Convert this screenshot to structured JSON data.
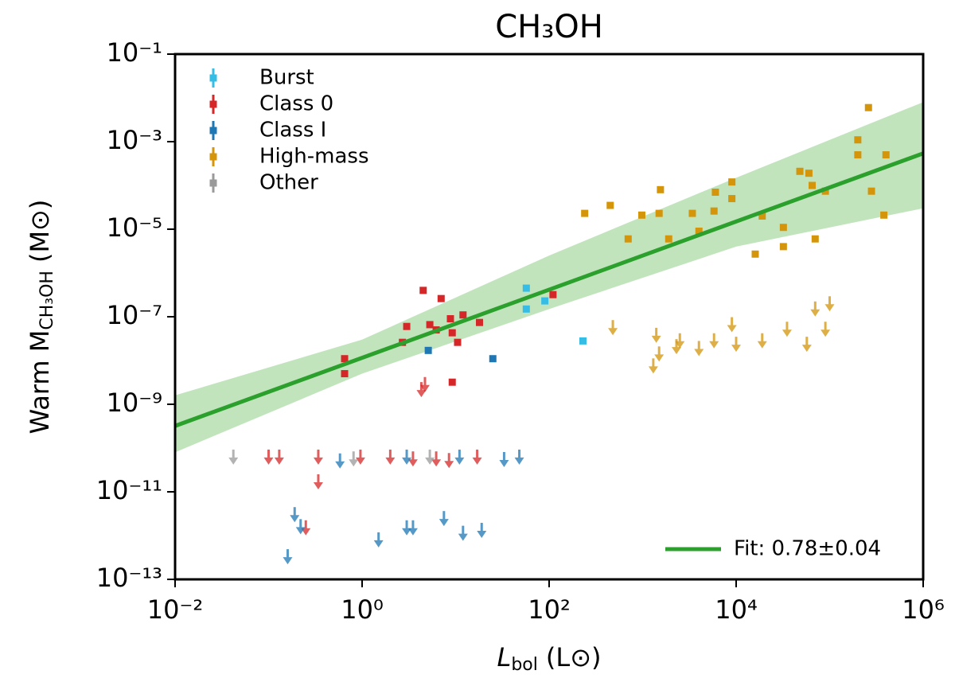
{
  "chart_data": {
    "type": "scatter",
    "title": "CH₃OH",
    "x_label": "L",
    "x_label_sub": "bol",
    "x_label_unit": "(L⊙)",
    "y_label": "Warm M",
    "y_label_sub": "CH₃OH",
    "y_label_unit": "(M⊙)",
    "log_x": true,
    "log_y": true,
    "xlim": [
      0.01,
      1000000
    ],
    "ylim": [
      1e-13,
      0.1
    ],
    "xticks": [
      {
        "value": 0.01,
        "label": "10⁻²"
      },
      {
        "value": 1,
        "label": "10⁰"
      },
      {
        "value": 100,
        "label": "10²"
      },
      {
        "value": 10000,
        "label": "10⁴"
      },
      {
        "value": 1000000,
        "label": "10⁶"
      }
    ],
    "yticks": [
      {
        "value": 1e-13,
        "label": "10⁻¹³"
      },
      {
        "value": 1e-11,
        "label": "10⁻¹¹"
      },
      {
        "value": 1e-09,
        "label": "10⁻⁹"
      },
      {
        "value": 1e-07,
        "label": "10⁻⁷"
      },
      {
        "value": 1e-05,
        "label": "10⁻⁵"
      },
      {
        "value": 0.001,
        "label": "10⁻³"
      },
      {
        "value": 0.1,
        "label": "10⁻¹"
      }
    ],
    "legend": "upper left",
    "series": [
      {
        "name": "Burst",
        "color": "#35bde6",
        "x": [
          57,
          57,
          90,
          230
        ],
        "values": [
          4.5e-07,
          1.5e-07,
          2.3e-07,
          2.8e-08
        ],
        "upper_limit": [
          false,
          false,
          false,
          false
        ]
      },
      {
        "name": "Class 0",
        "color": "#d62728",
        "x": [
          0.65,
          0.65,
          2.7,
          3.0,
          4.5,
          5.3,
          6.2,
          7,
          8.8,
          9.2,
          9.2,
          10.5,
          12,
          18,
          110,
          0.1,
          0.13,
          0.34,
          0.34,
          0.25,
          0.96,
          2,
          3.5,
          6.2,
          8.5,
          17,
          4.7,
          4.3
        ],
        "values": [
          1.1e-08,
          5e-09,
          2.6e-08,
          6e-08,
          4e-07,
          6.6e-08,
          5e-08,
          2.6e-07,
          9e-08,
          4.3e-08,
          3.2e-09,
          2.6e-08,
          1.1e-07,
          7.4e-08,
          3.2e-07,
          6.6e-11,
          6.6e-11,
          6.6e-11,
          1.8e-11,
          1.6e-12,
          6.6e-11,
          6.6e-11,
          6e-11,
          6e-11,
          5.5e-11,
          6.6e-11,
          3e-09,
          2.3e-09
        ],
        "upper_limit": [
          false,
          false,
          false,
          false,
          false,
          false,
          false,
          false,
          false,
          false,
          false,
          false,
          false,
          false,
          false,
          true,
          true,
          true,
          true,
          true,
          true,
          true,
          true,
          true,
          true,
          true,
          true,
          true
        ]
      },
      {
        "name": "Class I",
        "color": "#1f77b4",
        "x": [
          5.1,
          25,
          0.22,
          0.16,
          0.58,
          1.5,
          3.0,
          3.5,
          7.5,
          12,
          19,
          11,
          33,
          48,
          3.0,
          0.19
        ],
        "values": [
          1.7e-08,
          1.1e-08,
          1.7e-12,
          3.5e-13,
          5.4e-11,
          8.5e-13,
          1.6e-12,
          1.6e-12,
          2.6e-12,
          1.2e-12,
          1.4e-12,
          6.6e-11,
          5.8e-11,
          6.6e-11,
          6.6e-11,
          3.2e-12
        ],
        "upper_limit": [
          false,
          false,
          true,
          true,
          true,
          true,
          true,
          true,
          true,
          true,
          true,
          true,
          true,
          true,
          true,
          true
        ]
      },
      {
        "name": "High-mass",
        "color": "#d4950a",
        "x": [
          240,
          450,
          980,
          1500,
          1550,
          3400,
          6000,
          9000,
          9000,
          5800,
          19000,
          48000,
          60000,
          65000,
          90000,
          200000,
          200000,
          260000,
          280000,
          380000,
          400000,
          700,
          1900,
          4000,
          16000,
          32000,
          70000,
          32000,
          1400,
          1500,
          2500,
          4000,
          5800,
          9000,
          10000,
          19000,
          35000,
          57000,
          90000,
          100000,
          1300,
          480,
          2300,
          70000
        ],
        "values": [
          2.3e-05,
          3.5e-05,
          2.1e-05,
          2.3e-05,
          8e-05,
          2.3e-05,
          7e-05,
          0.00012,
          5e-05,
          2.6e-05,
          2e-05,
          0.00021,
          0.00019,
          0.0001,
          7.4e-05,
          0.0011,
          0.0005,
          0.006,
          7.4e-05,
          2.1e-05,
          0.0005,
          6e-06,
          6e-06,
          9e-06,
          2.7e-06,
          4e-06,
          6e-06,
          1.1e-05,
          4e-08,
          1.5e-08,
          3e-08,
          2e-08,
          3e-08,
          7e-08,
          2.5e-08,
          3e-08,
          5.5e-08,
          2.5e-08,
          5.5e-08,
          2.1e-07,
          8e-09,
          6e-08,
          2.2e-08,
          1.6e-07
        ],
        "upper_limit": [
          false,
          false,
          false,
          false,
          false,
          false,
          false,
          false,
          false,
          false,
          false,
          false,
          false,
          false,
          false,
          false,
          false,
          false,
          false,
          false,
          false,
          false,
          false,
          false,
          false,
          false,
          false,
          false,
          true,
          true,
          true,
          true,
          true,
          true,
          true,
          true,
          true,
          true,
          true,
          true,
          true,
          true,
          true,
          true
        ]
      },
      {
        "name": "Other",
        "color": "#9a9a9a",
        "x": [
          0.042,
          0.81,
          5.3
        ],
        "values": [
          6.6e-11,
          6e-11,
          6.6e-11
        ],
        "upper_limit": [
          true,
          true,
          true
        ]
      }
    ],
    "fit": {
      "name": "Fit: 0.78±0.04",
      "color": "#2ca02c",
      "band_color": "#9fd69a",
      "x": [
        0.01,
        1000000
      ],
      "values": [
        3.2e-10,
        0.00054
      ],
      "band_x": [
        0.01,
        1,
        100,
        10000,
        1000000
      ],
      "band_upper": [
        1.6e-09,
        3e-08,
        2.5e-06,
        0.00015,
        0.008
      ],
      "band_lower": [
        8e-11,
        5e-09,
        1.5e-07,
        4e-06,
        3e-05
      ]
    }
  }
}
